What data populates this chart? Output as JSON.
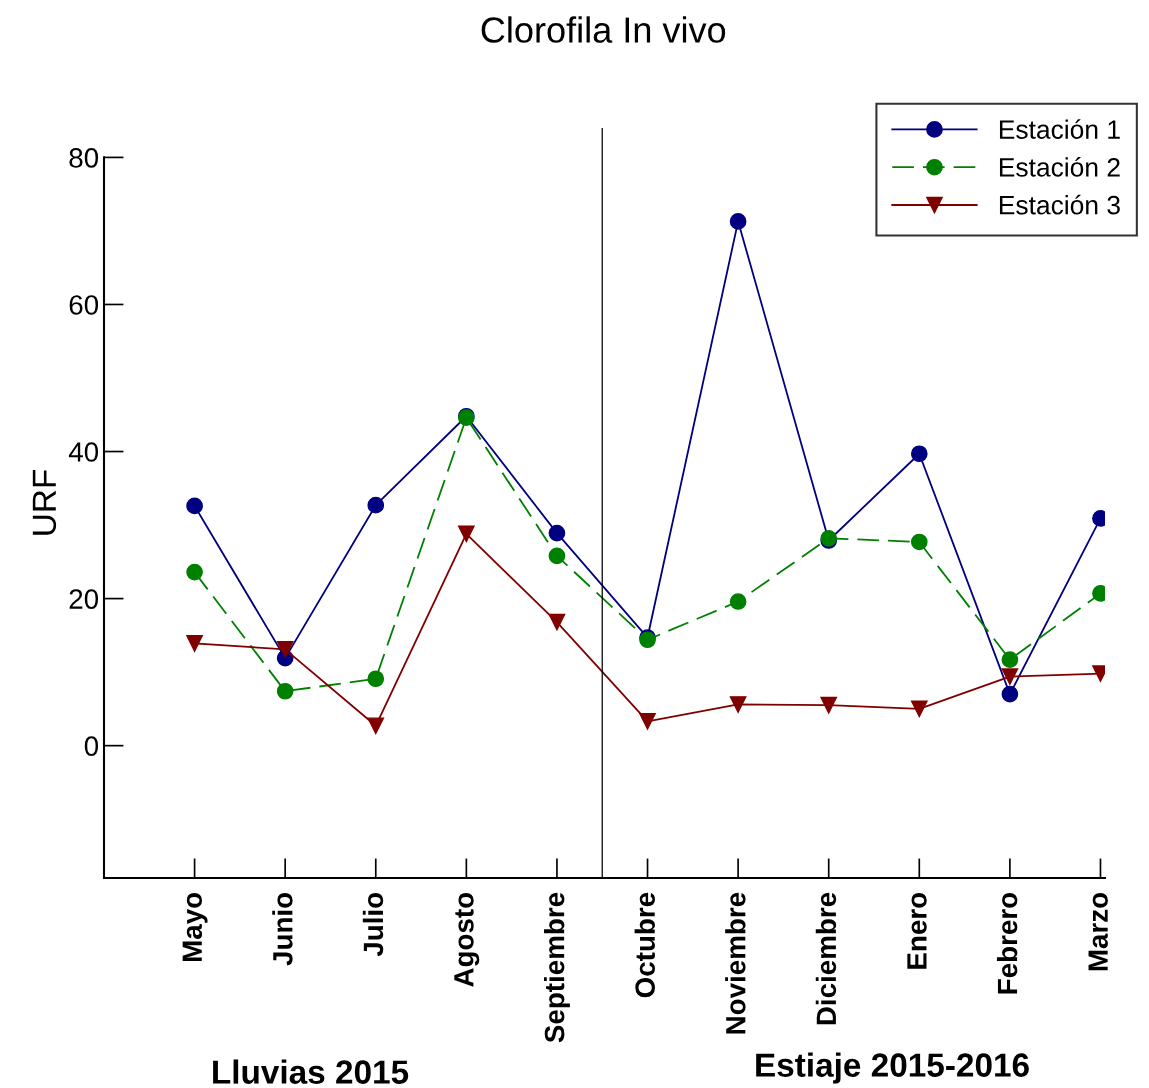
{
  "chart_data": {
    "type": "line",
    "title": "Clorofila In vivo",
    "ylabel": "URF",
    "categories": [
      "Mayo",
      "Junio",
      "Julio",
      "Agosto",
      "Septiembre",
      "Octubre",
      "Noviembre",
      "Diciembre",
      "Enero",
      "Febrero",
      "Marzo"
    ],
    "series": [
      {
        "name": "Estación 1",
        "color": "#000080",
        "marker": "circle",
        "line_style": "solid",
        "values": [
          32.6,
          11.9,
          32.7,
          44.8,
          28.9,
          14.7,
          71.3,
          27.9,
          39.7,
          7.0,
          30.9
        ]
      },
      {
        "name": "Estación 2",
        "color": "#008000",
        "marker": "circle",
        "line_style": "dashed",
        "values": [
          23.6,
          7.4,
          9.1,
          44.6,
          25.8,
          14.4,
          19.6,
          28.2,
          27.7,
          11.7,
          20.7
        ]
      },
      {
        "name": "Estación 3",
        "color": "#800000",
        "marker": "triangle",
        "line_style": "solid",
        "values": [
          13.9,
          13.1,
          2.7,
          28.8,
          16.8,
          3.3,
          5.6,
          5.5,
          5.0,
          9.4,
          9.8
        ]
      }
    ],
    "ylim": [
      -18,
      84
    ],
    "yticks": [
      0,
      20,
      40,
      60,
      80
    ],
    "annotations": [
      "Lluvias 2015",
      "Estiaje 2015-2016"
    ],
    "grid": false,
    "legend": "top right"
  }
}
